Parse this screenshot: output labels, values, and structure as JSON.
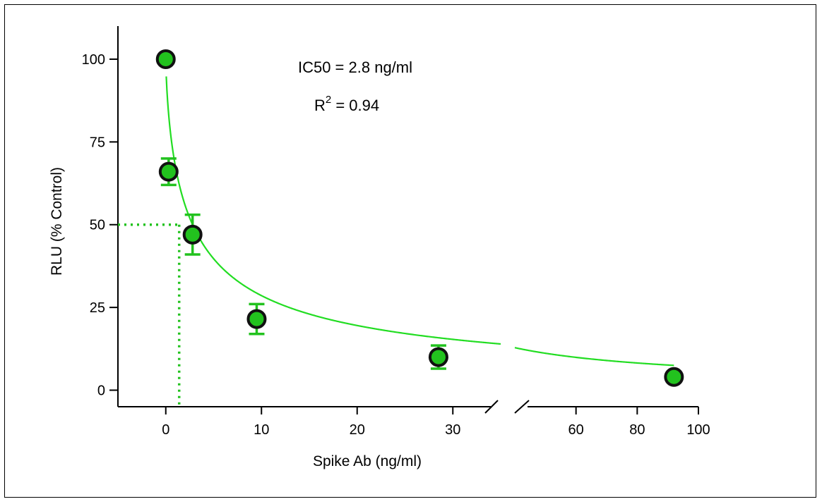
{
  "chart_data": {
    "type": "scatter",
    "xlabel": "Spike Ab (ng/ml)",
    "ylabel": "RLU (% Control)",
    "ylim": [
      -5,
      110
    ],
    "y_ticks": [
      0,
      25,
      50,
      75,
      100
    ],
    "x_axis_broken": true,
    "x_segments": [
      {
        "range": [
          -5,
          35
        ],
        "ticks": [
          0,
          10,
          20,
          30
        ]
      },
      {
        "range": [
          40,
          100
        ],
        "ticks": [
          60,
          80,
          100
        ]
      }
    ],
    "annotations": {
      "ic50_text": "IC50 = 2.8 ng/ml",
      "r2_prefix": "R",
      "r2_sup": "2",
      "r2_suffix": " = 0.94"
    },
    "series": [
      {
        "points": [
          {
            "x": 0,
            "y": 100,
            "err": 0
          },
          {
            "x": 0.3,
            "y": 66,
            "err": 4
          },
          {
            "x": 2.8,
            "y": 47,
            "err": 6
          },
          {
            "x": 9.5,
            "y": 21.5,
            "err": 4.5
          },
          {
            "x": 28.5,
            "y": 10,
            "err": 3.5
          },
          {
            "x": 92,
            "y": 4,
            "err": 0
          }
        ]
      }
    ],
    "fit": {
      "model": "hill",
      "top": 100,
      "ic50": 2.8,
      "hill": 0.72,
      "x_start": 0.05
    },
    "ic50_guide": {
      "x": 1.4,
      "y": 50
    },
    "colors": {
      "marker_fill": "#22c21e",
      "marker_edge": "#111111",
      "curve": "#22dd22",
      "error_bar": "#22c21e"
    }
  }
}
